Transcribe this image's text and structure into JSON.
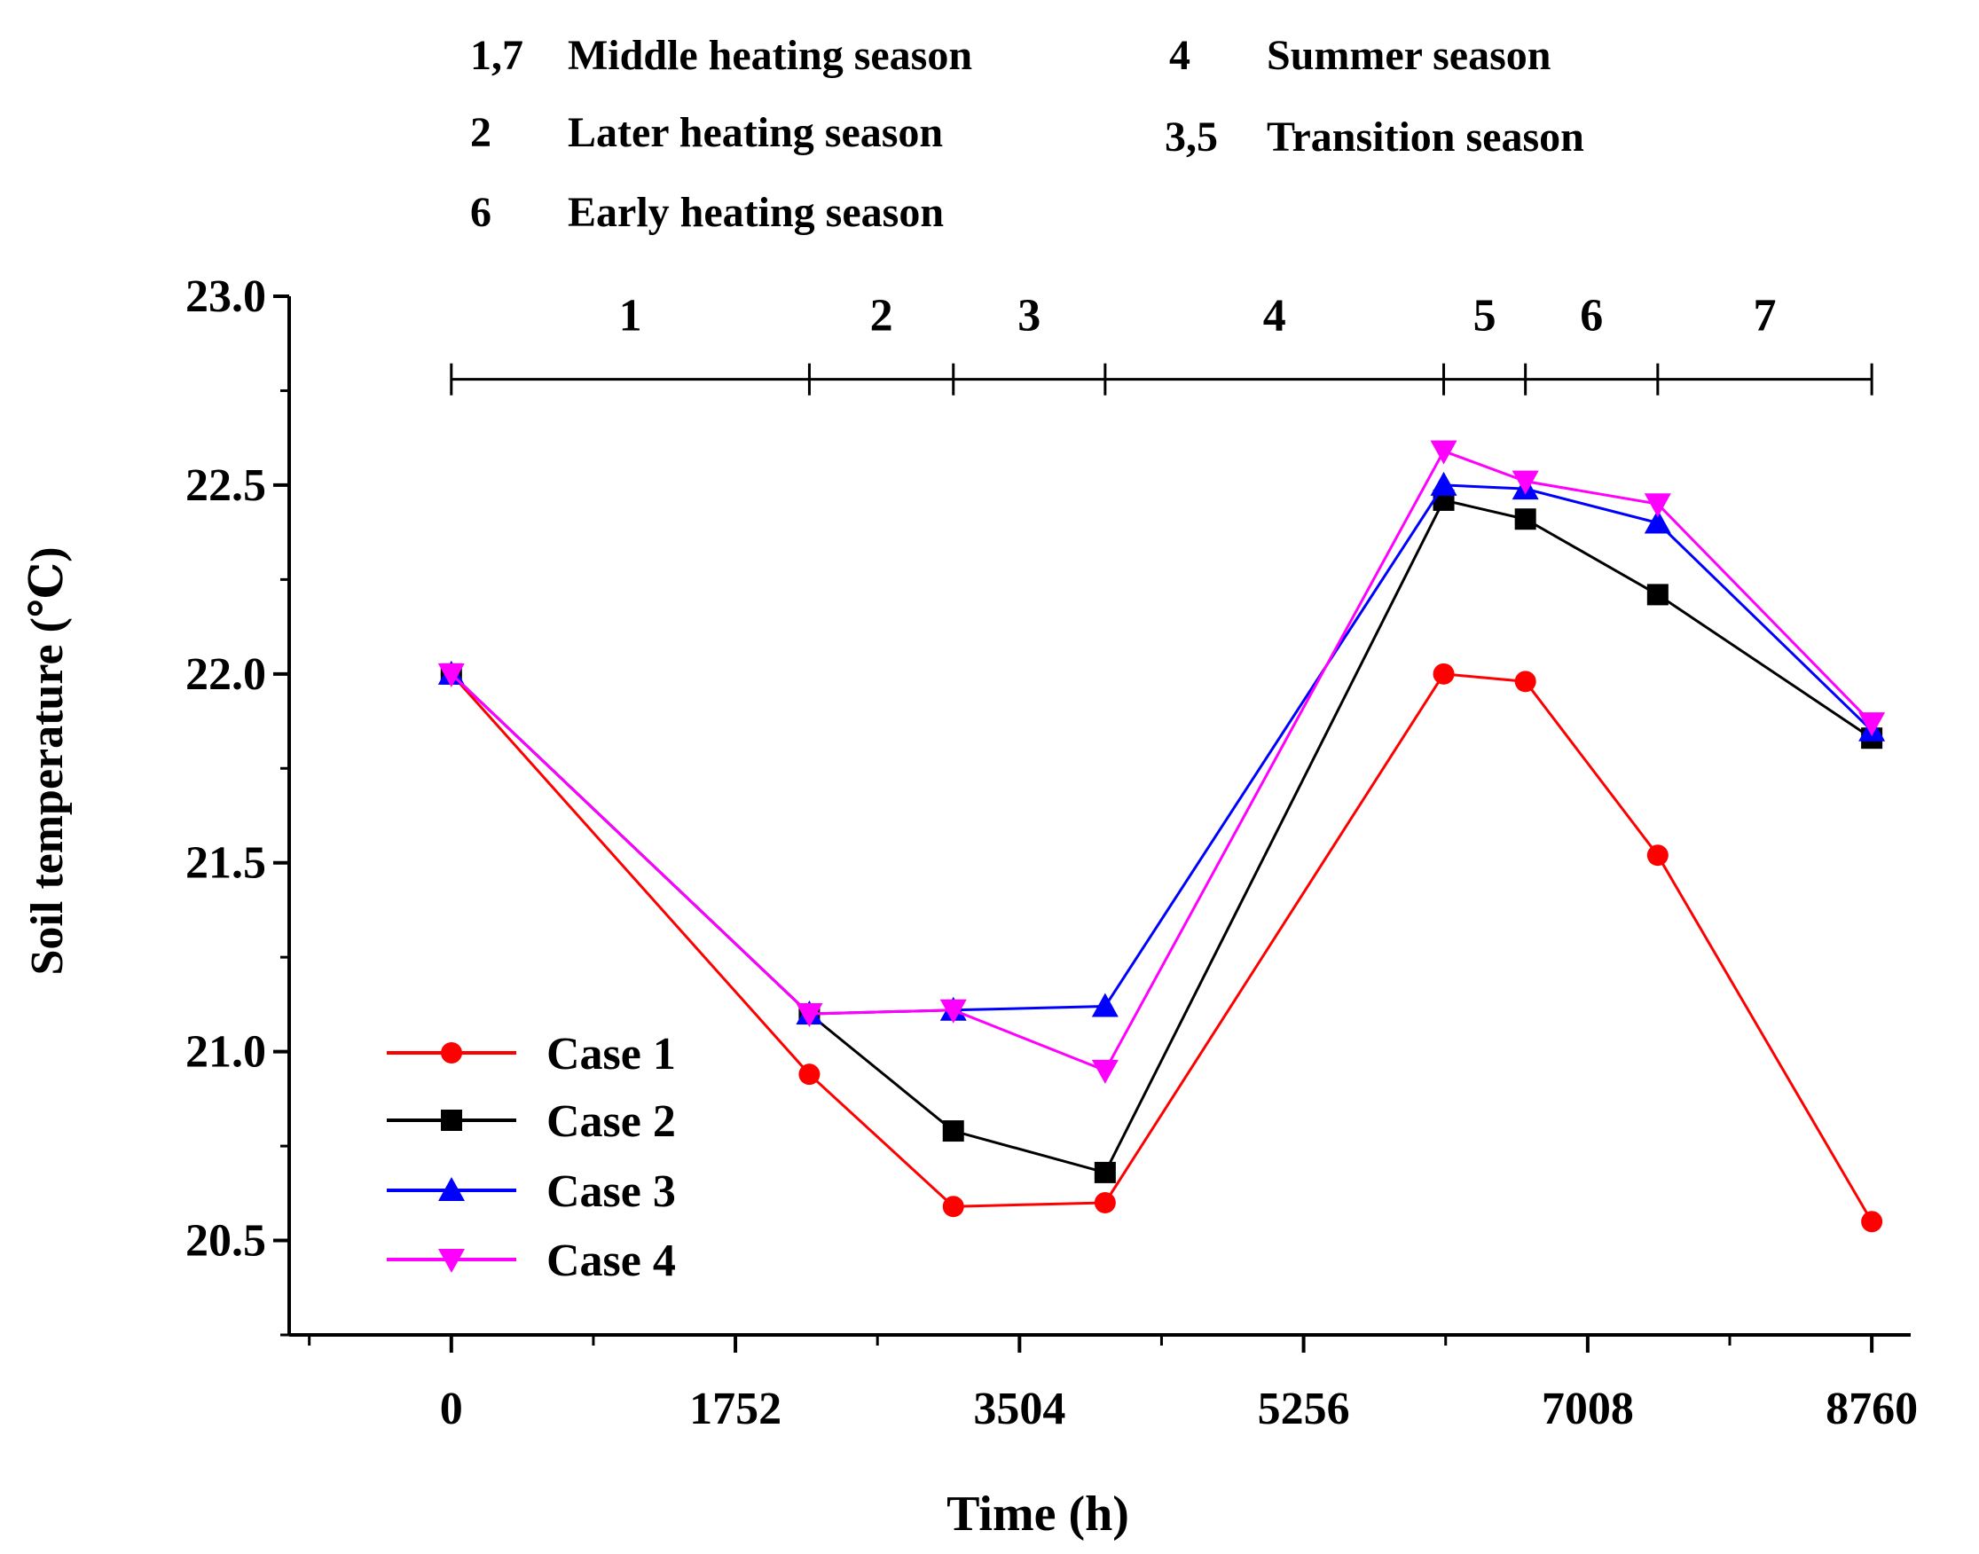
{
  "chart_data": {
    "type": "line",
    "xlabel": "Time (h)",
    "ylabel": "Soil temperature (℃)",
    "xlim": [
      -1000,
      9000
    ],
    "ylim": [
      20.25,
      23.0
    ],
    "xticks": [
      0,
      1752,
      3504,
      5256,
      7008,
      8760
    ],
    "xtick_labels": [
      "0",
      "1752",
      "3504",
      "5256",
      "7008",
      "8760"
    ],
    "yticks": [
      20.5,
      21.0,
      21.5,
      22.0,
      22.5,
      23.0
    ],
    "ytick_labels": [
      "20.5",
      "21.0",
      "21.5",
      "22.0",
      "22.5",
      "23.0"
    ],
    "x": [
      0,
      2208,
      3096,
      4032,
      6120,
      6624,
      7440,
      8760
    ],
    "series": [
      {
        "name": "Case 1",
        "color": "#ff0000",
        "marker": "circle",
        "values": [
          22.0,
          20.94,
          20.59,
          20.6,
          22.0,
          21.98,
          21.52,
          20.55
        ]
      },
      {
        "name": "Case 2",
        "color": "#000000",
        "marker": "square",
        "values": [
          22.0,
          21.1,
          20.79,
          20.68,
          22.46,
          22.41,
          22.21,
          21.83
        ]
      },
      {
        "name": "Case 3",
        "color": "#0000ff",
        "marker": "triangle-up",
        "values": [
          22.0,
          21.1,
          21.11,
          21.12,
          22.5,
          22.49,
          22.4,
          21.85
        ]
      },
      {
        "name": "Case 4",
        "color": "#ff00ff",
        "marker": "triangle-down",
        "values": [
          22.0,
          21.1,
          21.11,
          20.95,
          22.59,
          22.51,
          22.45,
          21.87
        ]
      }
    ],
    "legend_position": "bottom-left",
    "season_bar": {
      "level": 22.78,
      "boundaries": [
        0,
        2208,
        3096,
        4032,
        6120,
        6624,
        7440,
        8760
      ],
      "labels": [
        "1",
        "2",
        "3",
        "4",
        "5",
        "6",
        "7"
      ]
    },
    "season_legend": [
      {
        "code": "1,7",
        "name": "Middle heating season"
      },
      {
        "code": "2",
        "name": "Later heating season"
      },
      {
        "code": "6",
        "name": "Early heating season"
      },
      {
        "code": "4",
        "name": "Summer season"
      },
      {
        "code": "3,5",
        "name": "Transition season"
      }
    ]
  }
}
